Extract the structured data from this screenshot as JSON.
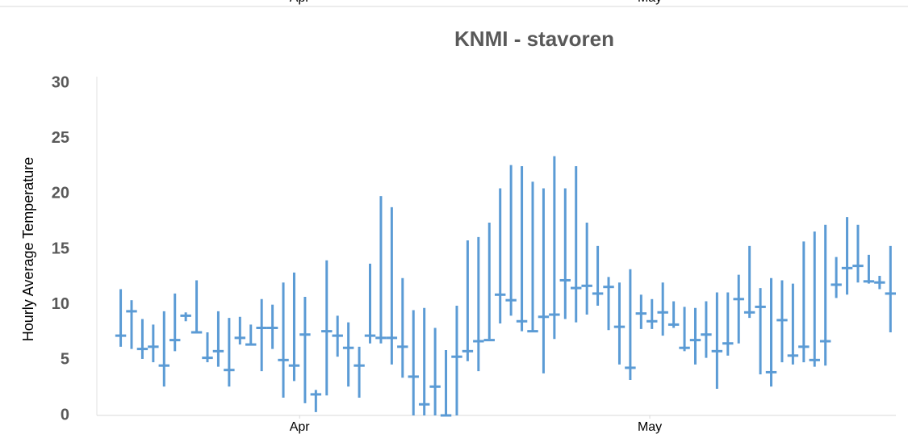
{
  "chart_data": {
    "type": "range",
    "title": "KNMI - stavoren",
    "y_label": "Hourly Average Temperature",
    "color": "#5b9bd5",
    "x": [
      1,
      2,
      3,
      4,
      5,
      6,
      7,
      8,
      9,
      10,
      11,
      12,
      13,
      14,
      15,
      16,
      17,
      18,
      19,
      20,
      21,
      22,
      23,
      24,
      25,
      26,
      27,
      28,
      29,
      30,
      31,
      32,
      33,
      34,
      35,
      36,
      37,
      38,
      39,
      40,
      41,
      42,
      43,
      44,
      45,
      46,
      47,
      48,
      49,
      50,
      51,
      52,
      53,
      54,
      55,
      56,
      57,
      58,
      59,
      60,
      61,
      62,
      63,
      64,
      65,
      66,
      67,
      68,
      69,
      70,
      71,
      72
    ],
    "low": [
      6.2,
      6.0,
      5.1,
      4.8,
      2.6,
      5.8,
      8.5,
      7.4,
      4.8,
      4.4,
      2.6,
      6.4,
      6.3,
      4.0,
      6.0,
      1.6,
      3.1,
      1.1,
      0.3,
      1.8,
      5.3,
      2.6,
      1.6,
      6.5,
      6.5,
      4.6,
      3.4,
      0,
      0,
      0,
      0,
      0,
      4.9,
      4.0,
      6.9,
      8.3,
      9.0,
      7.6,
      7.6,
      3.8,
      6.9,
      8.7,
      8.4,
      9.1,
      9.9,
      7.7,
      4.6,
      3.2,
      7.8,
      7.8,
      7.2,
      7.9,
      5.8,
      4.6,
      5.2,
      2.4,
      5.4,
      6.5,
      8.8,
      3.7,
      2.6,
      4.8,
      4.6,
      4.8,
      4.4,
      4.5,
      10.6,
      10.9,
      12.0,
      11.9,
      11.4,
      7.5
    ],
    "high": [
      11.4,
      10.4,
      8.7,
      8.2,
      9.4,
      11.0,
      9.3,
      12.2,
      7.5,
      9.4,
      8.8,
      8.9,
      8.2,
      10.5,
      10.0,
      12.0,
      12.9,
      10.7,
      2.3,
      14.0,
      9.0,
      8.4,
      6.2,
      13.7,
      19.8,
      18.8,
      12.4,
      9.5,
      9.7,
      7.9,
      5.9,
      9.9,
      15.8,
      16.1,
      17.4,
      20.5,
      22.6,
      22.5,
      21.1,
      20.5,
      23.4,
      20.5,
      22.5,
      17.4,
      15.3,
      12.5,
      12.0,
      13.2,
      10.9,
      10.5,
      12.0,
      10.3,
      9.8,
      9.7,
      10.3,
      11.1,
      11.1,
      12.7,
      15.3,
      11.5,
      12.4,
      12.2,
      11.9,
      15.7,
      16.6,
      17.2,
      14.3,
      17.9,
      17.2,
      14.5,
      12.6,
      15.3
    ],
    "mean": [
      7.2,
      9.4,
      6.0,
      6.2,
      4.5,
      6.8,
      9.0,
      7.5,
      5.2,
      5.8,
      4.1,
      7.0,
      6.4,
      7.9,
      7.9,
      5.0,
      4.5,
      7.3,
      1.9,
      7.6,
      7.2,
      6.1,
      4.5,
      7.2,
      7.0,
      7.0,
      6.2,
      3.5,
      1.0,
      2.6,
      0,
      5.3,
      5.8,
      6.7,
      6.8,
      10.9,
      10.4,
      8.5,
      7.6,
      8.9,
      9.1,
      12.2,
      11.5,
      11.7,
      11.0,
      11.6,
      8.0,
      4.3,
      9.2,
      8.5,
      9.3,
      8.2,
      6.1,
      6.8,
      7.3,
      5.8,
      6.5,
      10.5,
      9.3,
      9.8,
      3.9,
      8.6,
      5.4,
      6.2,
      5.0,
      6.7,
      11.8,
      13.3,
      13.5,
      12.1,
      12.0,
      11.0
    ],
    "xlim": [
      -1.2,
      72.5
    ],
    "xticks": [
      {
        "value": 17.5,
        "label": "Apr"
      },
      {
        "value": 49.8,
        "label": "May"
      }
    ],
    "ylim": [
      0,
      30
    ],
    "yticks": [
      0,
      5,
      10,
      15,
      20,
      25,
      30
    ]
  }
}
